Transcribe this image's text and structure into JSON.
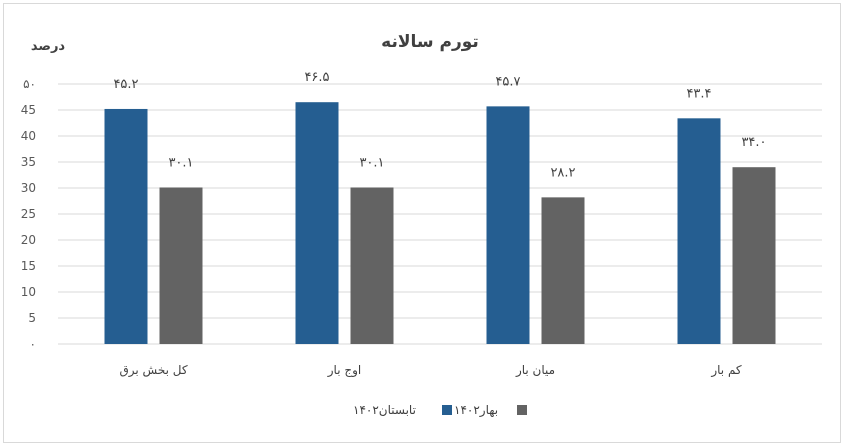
{
  "chart_data": {
    "type": "bar",
    "title": "تورم سالانه",
    "ylabel": "درصد",
    "xlabel": "",
    "ylim": [
      0,
      50
    ],
    "y_ticks": [
      0,
      5,
      10,
      15,
      20,
      25,
      30,
      35,
      40,
      45,
      50
    ],
    "y_tick_labels": [
      "۰",
      "5",
      "10",
      "15",
      "20",
      "25",
      "30",
      "35",
      "40",
      "45",
      "۵۰"
    ],
    "categories": [
      "کل بخش برق",
      "اوج بار",
      "میان بار",
      "کم بار"
    ],
    "series": [
      {
        "name": "تابستان۱۴۰۲",
        "color": "#255e91",
        "values": [
          45.2,
          46.5,
          45.7,
          43.4
        ],
        "labels": [
          "۴۵.۲",
          "۴۶.۵",
          "۴۵.۷",
          "۴۳.۴"
        ]
      },
      {
        "name": "بهار۱۴۰۲",
        "color": "#636363",
        "values": [
          30.1,
          30.1,
          28.2,
          34.0
        ],
        "labels": [
          "۳۰.۱",
          "۳۰.۱",
          "۲۸.۲",
          "۳۴.۰"
        ]
      }
    ],
    "grid": true,
    "legend_position": "bottom"
  }
}
